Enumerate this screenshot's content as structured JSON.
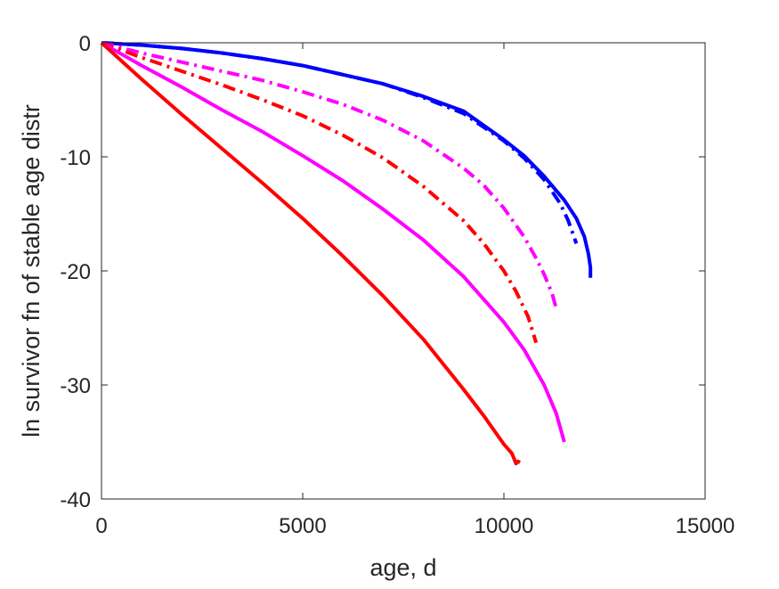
{
  "chart_data": {
    "type": "line",
    "title": "",
    "xlabel": "age, d",
    "ylabel": "ln survivor fn of stable age distr",
    "xlim": [
      0,
      15000
    ],
    "ylim": [
      -40,
      0
    ],
    "xticks": [
      "0",
      "5000",
      "10000",
      "15000"
    ],
    "yticks": [
      "0",
      "-10",
      "-20",
      "-30",
      "-40"
    ],
    "grid": false,
    "legend": "none",
    "series": [
      {
        "color": "#0000ff",
        "style": "solid",
        "x": [
          0,
          1000,
          2000,
          3000,
          4000,
          5000,
          6000,
          7000,
          8000,
          9000,
          10000,
          10500,
          11000,
          11500,
          11800,
          12000,
          12100,
          12150,
          12150
        ],
        "y": [
          0,
          -0.2,
          -0.5,
          -0.9,
          -1.4,
          -2.0,
          -2.8,
          -3.6,
          -4.7,
          -6.0,
          -8.5,
          -9.9,
          -11.7,
          -13.8,
          -15.4,
          -17.0,
          -18.5,
          -19.7,
          -20.6
        ]
      },
      {
        "color": "#0000ff",
        "style": "dashdot",
        "x": [
          0,
          1000,
          2000,
          3000,
          4000,
          5000,
          6000,
          7000,
          8000,
          9000,
          10000,
          10500,
          11000,
          11400,
          11600,
          11800
        ],
        "y": [
          0,
          -0.2,
          -0.5,
          -0.9,
          -1.4,
          -2.0,
          -2.8,
          -3.6,
          -4.8,
          -6.2,
          -8.6,
          -10.1,
          -12.0,
          -14.1,
          -15.6,
          -17.6
        ]
      },
      {
        "color": "#ff00ff",
        "style": "dashdot",
        "x": [
          0,
          1000,
          2000,
          3000,
          4000,
          5000,
          6000,
          7000,
          8000,
          9000,
          9500,
          10000,
          10500,
          10800,
          11000,
          11200,
          11300
        ],
        "y": [
          0,
          -0.9,
          -1.7,
          -2.5,
          -3.3,
          -4.3,
          -5.4,
          -6.8,
          -8.6,
          -11.0,
          -12.5,
          -14.5,
          -17.0,
          -18.9,
          -20.3,
          -22.0,
          -23.3
        ]
      },
      {
        "color": "#ff0000",
        "style": "dashdot",
        "x": [
          0,
          1000,
          2000,
          3000,
          4000,
          5000,
          6000,
          7000,
          8000,
          9000,
          9500,
          10000,
          10300,
          10600,
          10800
        ],
        "y": [
          0,
          -1.3,
          -2.5,
          -3.7,
          -5.0,
          -6.4,
          -8.1,
          -10.1,
          -12.6,
          -15.6,
          -17.6,
          -20.0,
          -21.8,
          -24.0,
          -26.3
        ]
      },
      {
        "color": "#ff00ff",
        "style": "solid",
        "x": [
          0,
          1000,
          2000,
          3000,
          4000,
          5000,
          6000,
          7000,
          8000,
          9000,
          10000,
          10500,
          11000,
          11300,
          11500
        ],
        "y": [
          0,
          -2.0,
          -3.9,
          -5.9,
          -7.8,
          -9.9,
          -12.1,
          -14.6,
          -17.3,
          -20.5,
          -24.5,
          -26.9,
          -30.0,
          -32.5,
          -35.0
        ]
      },
      {
        "color": "#ff0000",
        "style": "solid",
        "x": [
          0,
          1000,
          2000,
          3000,
          4000,
          5000,
          6000,
          7000,
          8000,
          8500,
          9000,
          9500,
          10000,
          10200,
          10300,
          10350,
          10400
        ],
        "y": [
          0,
          -3.2,
          -6.3,
          -9.3,
          -12.3,
          -15.4,
          -18.7,
          -22.2,
          -26.0,
          -28.2,
          -30.4,
          -32.7,
          -35.2,
          -36.0,
          -36.9,
          -36.7,
          -36.8
        ]
      }
    ]
  }
}
